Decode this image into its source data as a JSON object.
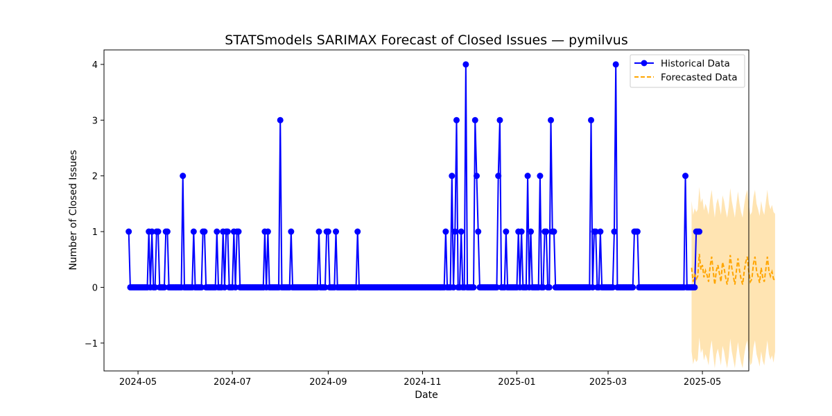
{
  "chart_data": {
    "type": "line",
    "title": "STATSmodels SARIMAX Forecast of Closed Issues — pymilvus",
    "xlabel": "Date",
    "ylabel": "Number of Closed Issues",
    "x_axis": {
      "type": "date",
      "range": [
        "2024-04-09",
        "2025-05-31"
      ],
      "ticks": [
        {
          "date": "2024-05-01",
          "label": "2024-05"
        },
        {
          "date": "2024-07-01",
          "label": "2024-07"
        },
        {
          "date": "2024-09-01",
          "label": "2024-09"
        },
        {
          "date": "2024-11-01",
          "label": "2024-11"
        },
        {
          "date": "2025-01-01",
          "label": "2025-01"
        },
        {
          "date": "2025-03-01",
          "label": "2025-03"
        },
        {
          "date": "2025-05-01",
          "label": "2025-05"
        }
      ]
    },
    "y_axis": {
      "range": [
        -1.5,
        4.26
      ],
      "ticks": [
        {
          "value": -1,
          "label": "−1"
        },
        {
          "value": 0,
          "label": "0"
        },
        {
          "value": 1,
          "label": "1"
        },
        {
          "value": 2,
          "label": "2"
        },
        {
          "value": 3,
          "label": "3"
        },
        {
          "value": 4,
          "label": "4"
        }
      ]
    },
    "grid": false,
    "legend_position": "top-right",
    "series": [
      {
        "name": "Historical Data",
        "kind": "line-markers",
        "color": "#0000ff",
        "start_date": "2024-04-25",
        "frequency": "daily",
        "values": [
          1,
          0,
          0,
          0,
          0,
          0,
          0,
          0,
          0,
          0,
          0,
          0,
          0,
          1,
          0,
          1,
          0,
          0,
          1,
          1,
          0,
          0,
          0,
          0,
          1,
          1,
          0,
          0,
          0,
          0,
          0,
          0,
          0,
          0,
          0,
          2,
          0,
          0,
          0,
          0,
          0,
          0,
          1,
          0,
          0,
          0,
          0,
          0,
          1,
          1,
          0,
          0,
          0,
          0,
          0,
          0,
          0,
          1,
          0,
          0,
          0,
          1,
          0,
          1,
          1,
          0,
          0,
          0,
          1,
          0,
          1,
          1,
          0,
          0,
          0,
          0,
          0,
          0,
          0,
          0,
          0,
          0,
          0,
          0,
          0,
          0,
          0,
          0,
          1,
          0,
          1,
          0,
          0,
          0,
          0,
          0,
          0,
          0,
          3,
          0,
          0,
          0,
          0,
          0,
          0,
          1,
          0,
          0,
          0,
          0,
          0,
          0,
          0,
          0,
          0,
          0,
          0,
          0,
          0,
          0,
          0,
          0,
          0,
          1,
          0,
          0,
          0,
          0,
          1,
          1,
          0,
          0,
          0,
          0,
          1,
          0,
          0,
          0,
          0,
          0,
          0,
          0,
          0,
          0,
          0,
          0,
          0,
          0,
          1,
          0,
          0,
          0,
          0,
          0,
          0,
          0,
          0,
          0,
          0,
          0,
          0,
          0,
          0,
          0,
          0,
          0,
          0,
          0,
          0,
          0,
          0,
          0,
          0,
          0,
          0,
          0,
          0,
          0,
          0,
          0,
          0,
          0,
          0,
          0,
          0,
          0,
          0,
          0,
          0,
          0,
          0,
          0,
          0,
          0,
          0,
          0,
          0,
          0,
          0,
          0,
          0,
          0,
          0,
          0,
          0,
          1,
          0,
          0,
          0,
          2,
          0,
          1,
          3,
          0,
          0,
          1,
          0,
          0,
          4,
          0,
          0,
          0,
          0,
          0,
          3,
          2,
          1,
          0,
          0,
          0,
          0,
          0,
          0,
          0,
          0,
          0,
          0,
          0,
          0,
          2,
          3,
          0,
          0,
          0,
          1,
          0,
          0,
          0,
          0,
          0,
          0,
          0,
          1,
          0,
          1,
          0,
          0,
          0,
          2,
          0,
          1,
          0,
          0,
          0,
          0,
          0,
          2,
          0,
          0,
          1,
          1,
          0,
          0,
          3,
          1,
          1,
          0,
          0,
          0,
          0,
          0,
          0,
          0,
          0,
          0,
          0,
          0,
          0,
          0,
          0,
          0,
          0,
          0,
          0,
          0,
          0,
          0,
          0,
          0,
          3,
          0,
          1,
          1,
          0,
          0,
          1,
          0,
          0,
          0,
          0,
          0,
          0,
          0,
          0,
          1,
          4,
          0,
          0,
          0,
          0,
          0,
          0,
          0,
          0,
          0,
          0,
          0,
          1,
          1,
          1,
          0,
          0,
          0,
          0,
          0,
          0,
          0,
          0,
          0,
          0,
          0,
          0,
          0,
          0,
          0,
          0,
          0,
          0,
          0,
          0,
          0,
          0,
          0,
          0,
          0,
          0,
          0,
          0,
          0,
          0,
          2,
          0,
          0,
          0,
          0,
          0,
          0,
          1,
          1,
          1
        ]
      },
      {
        "name": "Forecasted Data",
        "kind": "dashed-line-with-band",
        "color": "#ffa500",
        "band_color": "#ffa500",
        "start_date": "2025-04-24",
        "frequency": "daily",
        "values": [
          0.35,
          0.1,
          0.22,
          0.15,
          0.2,
          0.6,
          0.32,
          0.4,
          0.18,
          0.3,
          0.22,
          0.1,
          0.38,
          0.55,
          0.28,
          0.05,
          0.3,
          0.4,
          0.25,
          0.1,
          0.45,
          0.35,
          0.18,
          0.05,
          0.25,
          0.58,
          0.35,
          0.2,
          0.05,
          0.3,
          0.52,
          0.3,
          0.15,
          0.05,
          0.28,
          0.45,
          0.55,
          0.28,
          0.1,
          0.15,
          0.42,
          0.55,
          0.3,
          0.2,
          0.08,
          0.35,
          0.18,
          0.1,
          0.32,
          0.55,
          0.3,
          0.2,
          0.28,
          0.15,
          0.12
        ],
        "lower": [
          -1.15,
          -1.38,
          -1.27,
          -1.34,
          -1.3,
          -0.9,
          -1.18,
          -1.1,
          -1.31,
          -1.2,
          -1.28,
          -1.4,
          -1.12,
          -0.95,
          -1.22,
          -1.45,
          -1.2,
          -1.1,
          -1.25,
          -1.4,
          -1.05,
          -1.15,
          -1.32,
          -1.45,
          -1.25,
          -0.92,
          -1.15,
          -1.3,
          -1.45,
          -1.2,
          -0.98,
          -1.2,
          -1.35,
          -1.45,
          -1.22,
          -1.05,
          -0.95,
          -1.22,
          -1.4,
          -1.35,
          -1.08,
          -0.95,
          -1.2,
          -1.3,
          -1.42,
          -1.15,
          -1.32,
          -1.4,
          -1.18,
          -0.95,
          -1.2,
          -1.3,
          -1.22,
          -1.35,
          -1.15
        ],
        "upper": [
          1.55,
          1.3,
          1.42,
          1.35,
          1.4,
          1.8,
          1.52,
          1.6,
          1.38,
          1.5,
          1.42,
          1.3,
          1.58,
          1.75,
          1.48,
          1.25,
          1.5,
          1.6,
          1.45,
          1.3,
          1.65,
          1.55,
          1.38,
          1.25,
          1.45,
          1.78,
          1.55,
          1.4,
          1.25,
          1.5,
          1.72,
          1.5,
          1.35,
          1.25,
          1.48,
          1.65,
          1.75,
          1.48,
          1.3,
          1.35,
          1.62,
          1.75,
          1.5,
          1.4,
          1.28,
          1.55,
          1.38,
          1.3,
          1.52,
          1.75,
          1.5,
          1.4,
          1.48,
          1.35,
          1.32
        ]
      }
    ]
  }
}
